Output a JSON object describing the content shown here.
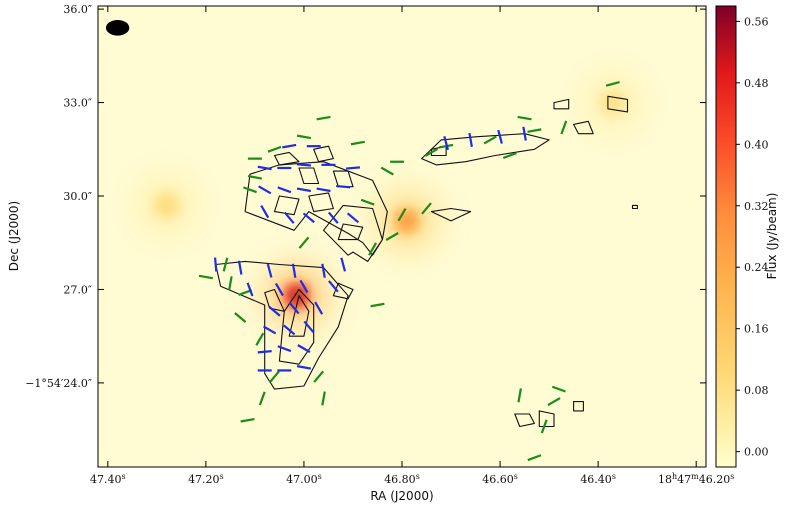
{
  "chart_data": {
    "type": "heatmap",
    "title": "",
    "xlabel": "RA (J2000)",
    "ylabel": "Dec (J2000)",
    "x_ticks": [
      {
        "value": 47.4,
        "label": "47.40s"
      },
      {
        "value": 47.2,
        "label": "47.20s"
      },
      {
        "value": 47.0,
        "label": "47.00s"
      },
      {
        "value": 46.8,
        "label": "46.80s"
      },
      {
        "value": 46.6,
        "label": "46.60s"
      },
      {
        "value": 46.4,
        "label": "46.40s"
      },
      {
        "value": 46.2,
        "label": "18h47m46.20s"
      }
    ],
    "y_ticks": [
      {
        "value": 24.0,
        "label": "−1°54′24.0″"
      },
      {
        "value": 27.0,
        "label": "27.0″"
      },
      {
        "value": 30.0,
        "label": "30.0″"
      },
      {
        "value": 33.0,
        "label": "33.0″"
      },
      {
        "value": 36.0,
        "label": "36.0″"
      }
    ],
    "xlim": [
      47.42,
      46.18
    ],
    "ylim": [
      36.1,
      21.3
    ],
    "colorbar": {
      "label": "Flux (Jy/beam)",
      "range": [
        -0.02,
        0.58
      ],
      "ticks": [
        "0.00",
        "0.08",
        "0.16",
        "0.24",
        "0.32",
        "0.40",
        "0.48",
        "0.56"
      ],
      "tick_values": [
        0.0,
        0.08,
        0.16,
        0.24,
        0.32,
        0.4,
        0.48,
        0.56
      ],
      "colormap": "YlOrRd"
    },
    "emission_peaks": [
      {
        "ra": 47.015,
        "dec": 26.8,
        "peak_flux": 0.55
      },
      {
        "ra": 46.79,
        "dec": 29.2,
        "peak_flux": 0.3
      },
      {
        "ra": 47.28,
        "dec": 29.7,
        "peak_flux": 0.1
      },
      {
        "ra": 46.37,
        "dec": 33.0,
        "peak_flux": 0.08
      }
    ],
    "contours": [
      {
        "ra": [
          47.08,
          47.06,
          47.0,
          46.97,
          46.93,
          46.91,
          46.96,
          47.05,
          47.12,
          47.18,
          47.17,
          47.08,
          47.08
        ],
        "dec": [
          24.3,
          23.8,
          23.9,
          24.8,
          25.8,
          26.8,
          27.7,
          27.8,
          27.9,
          27.8,
          27.1,
          26.5,
          24.3
        ]
      },
      {
        "ra": [
          47.05,
          47.01,
          46.98,
          46.98,
          47.01,
          47.04,
          47.05
        ],
        "dec": [
          24.7,
          24.6,
          25.3,
          26.5,
          27.0,
          26.3,
          24.7
        ]
      },
      {
        "ra": [
          47.03,
          47.0,
          46.99,
          47.01,
          47.03
        ],
        "dec": [
          25.5,
          25.5,
          26.3,
          26.8,
          25.5
        ]
      },
      {
        "ra": [
          47.04,
          47.07,
          47.08,
          47.06,
          47.04
        ],
        "dec": [
          26.3,
          26.4,
          26.9,
          27.0,
          26.3
        ]
      },
      {
        "ra": [
          46.94,
          46.91,
          46.9,
          46.93,
          46.94
        ],
        "dec": [
          26.8,
          26.7,
          27.0,
          27.2,
          26.8
        ]
      },
      {
        "ra": [
          46.9,
          46.87,
          46.84,
          46.83,
          46.86,
          46.96,
          47.05,
          47.11,
          47.12,
          47.02,
          46.99,
          46.91,
          46.88,
          46.86,
          46.84,
          46.86,
          46.92,
          46.96,
          46.91,
          46.9
        ],
        "dec": [
          28.2,
          27.9,
          28.6,
          29.5,
          30.5,
          31.1,
          31.0,
          30.7,
          29.5,
          28.9,
          29.5,
          28.8,
          28.5,
          28.1,
          28.6,
          29.6,
          29.7,
          28.9,
          28.1,
          28.2
        ]
      },
      {
        "ra": [
          46.93,
          46.89,
          46.88,
          46.92,
          46.93
        ],
        "dec": [
          28.6,
          28.6,
          29.0,
          29.1,
          28.6
        ]
      },
      {
        "ra": [
          46.98,
          46.94,
          46.95,
          46.99,
          46.98
        ],
        "dec": [
          29.5,
          29.6,
          30.1,
          30.0,
          29.5
        ]
      },
      {
        "ra": [
          47.06,
          47.02,
          47.01,
          47.05,
          47.06
        ],
        "dec": [
          29.5,
          29.4,
          29.9,
          30.0,
          29.5
        ]
      },
      {
        "ra": [
          47.0,
          46.97,
          46.98,
          47.01,
          47.0
        ],
        "dec": [
          30.4,
          30.4,
          30.9,
          30.9,
          30.4
        ]
      },
      {
        "ra": [
          46.93,
          46.9,
          46.91,
          46.94,
          46.93
        ],
        "dec": [
          30.3,
          30.3,
          30.8,
          30.8,
          30.3
        ]
      },
      {
        "ra": [
          47.05,
          47.01,
          47.03,
          47.06,
          47.05
        ],
        "dec": [
          31.0,
          31.1,
          31.4,
          31.3,
          31.0
        ]
      },
      {
        "ra": [
          46.97,
          46.94,
          46.95,
          46.98,
          46.97
        ],
        "dec": [
          31.1,
          31.2,
          31.6,
          31.5,
          31.1
        ]
      },
      {
        "ra": [
          46.74,
          46.7,
          46.66,
          46.7,
          46.74
        ],
        "dec": [
          29.5,
          29.6,
          29.5,
          29.2,
          29.5
        ]
      },
      {
        "ra": [
          46.76,
          46.72,
          46.65,
          46.55,
          46.5,
          46.53,
          46.61,
          46.67,
          46.73,
          46.76
        ],
        "dec": [
          31.2,
          31.8,
          31.9,
          32.0,
          31.8,
          31.5,
          31.3,
          31.1,
          31.0,
          31.2
        ]
      },
      {
        "ra": [
          46.74,
          46.71,
          46.71,
          46.74,
          46.74
        ],
        "dec": [
          31.3,
          31.3,
          31.6,
          31.5,
          31.3
        ]
      },
      {
        "ra": [
          46.44,
          46.41,
          46.42,
          46.45,
          46.44
        ],
        "dec": [
          32.0,
          32.0,
          32.4,
          32.3,
          32.0
        ]
      },
      {
        "ra": [
          46.38,
          46.34,
          46.34,
          46.38,
          46.38
        ],
        "dec": [
          32.8,
          32.7,
          33.1,
          33.2,
          32.8
        ]
      },
      {
        "ra": [
          46.49,
          46.46,
          46.46,
          46.49,
          46.49
        ],
        "dec": [
          32.8,
          32.8,
          33.1,
          33.0,
          32.8
        ]
      },
      {
        "ra": [
          46.56,
          46.53,
          46.54,
          46.57,
          46.56
        ],
        "dec": [
          22.6,
          22.7,
          23.0,
          23.0,
          22.6
        ]
      },
      {
        "ra": [
          46.52,
          46.49,
          46.49,
          46.52,
          46.52
        ],
        "dec": [
          22.6,
          22.6,
          23.0,
          23.1,
          22.6
        ]
      },
      {
        "ra": [
          46.45,
          46.43,
          46.43,
          46.45,
          46.45
        ],
        "dec": [
          23.1,
          23.1,
          23.4,
          23.4,
          23.1
        ]
      },
      {
        "ra": [
          46.33,
          46.32,
          46.32,
          46.33,
          46.33
        ],
        "dec": [
          29.6,
          29.6,
          29.7,
          29.7,
          29.6
        ]
      }
    ],
    "vectors_green": [
      [
        47.115,
        22.8,
        80
      ],
      [
        47.085,
        23.5,
        20
      ],
      [
        47.06,
        24.2,
        40
      ],
      [
        47.09,
        25.4,
        30
      ],
      [
        47.13,
        26.1,
        130
      ],
      [
        47.12,
        26.9,
        70
      ],
      [
        47.15,
        27.2,
        10
      ],
      [
        47.16,
        27.8,
        15
      ],
      [
        47.2,
        27.4,
        100
      ],
      [
        47.0,
        28.5,
        40
      ],
      [
        46.96,
        23.5,
        10
      ],
      [
        46.97,
        24.2,
        40
      ],
      [
        46.86,
        28.3,
        30
      ],
      [
        46.82,
        28.7,
        60
      ],
      [
        46.85,
        26.5,
        80
      ],
      [
        46.8,
        29.4,
        30
      ],
      [
        46.75,
        29.6,
        40
      ],
      [
        46.74,
        31.4,
        60
      ],
      [
        46.71,
        31.6,
        80
      ],
      [
        46.62,
        31.8,
        60
      ],
      [
        46.58,
        31.3,
        70
      ],
      [
        46.53,
        32.1,
        80
      ],
      [
        46.55,
        32.5,
        100
      ],
      [
        46.47,
        32.2,
        20
      ],
      [
        46.37,
        33.6,
        75
      ],
      [
        46.53,
        21.6,
        70
      ],
      [
        46.56,
        23.6,
        10
      ],
      [
        46.51,
        22.6,
        20
      ],
      [
        46.49,
        23.4,
        60
      ],
      [
        46.48,
        23.8,
        110
      ],
      [
        47.11,
        30.2,
        110
      ],
      [
        47.1,
        30.6,
        100
      ],
      [
        47.1,
        31.2,
        90
      ],
      [
        47.06,
        31.5,
        70
      ],
      [
        47.0,
        31.9,
        100
      ],
      [
        46.96,
        32.5,
        80
      ],
      [
        46.89,
        31.7,
        80
      ],
      [
        46.83,
        30.8,
        120
      ],
      [
        46.81,
        31.1,
        90
      ],
      [
        46.87,
        29.8,
        110
      ]
    ],
    "vectors_blue": [
      [
        47.08,
        24.4,
        90
      ],
      [
        47.04,
        24.4,
        90
      ],
      [
        47.0,
        24.5,
        100
      ],
      [
        47.08,
        25.0,
        85
      ],
      [
        47.04,
        25.1,
        110
      ],
      [
        47.0,
        25.1,
        120
      ],
      [
        47.07,
        25.7,
        120
      ],
      [
        47.03,
        25.7,
        130
      ],
      [
        46.99,
        25.8,
        140
      ],
      [
        47.06,
        26.3,
        130
      ],
      [
        47.02,
        26.4,
        140
      ],
      [
        46.97,
        26.4,
        150
      ],
      [
        47.11,
        27.0,
        160
      ],
      [
        47.05,
        27.0,
        150
      ],
      [
        47.0,
        27.1,
        150
      ],
      [
        46.94,
        27.1,
        140
      ],
      [
        47.18,
        27.8,
        175
      ],
      [
        47.13,
        27.7,
        170
      ],
      [
        47.07,
        27.6,
        165
      ],
      [
        47.02,
        27.6,
        170
      ],
      [
        46.96,
        27.6,
        170
      ],
      [
        46.92,
        27.8,
        165
      ],
      [
        47.08,
        29.5,
        150
      ],
      [
        47.03,
        29.3,
        140
      ],
      [
        46.99,
        29.3,
        130
      ],
      [
        46.94,
        29.3,
        140
      ],
      [
        46.9,
        29.3,
        130
      ],
      [
        47.08,
        30.2,
        120
      ],
      [
        47.04,
        30.2,
        110
      ],
      [
        47.0,
        30.2,
        100
      ],
      [
        46.96,
        30.2,
        100
      ],
      [
        46.92,
        30.3,
        95
      ],
      [
        47.08,
        30.9,
        100
      ],
      [
        47.04,
        30.9,
        90
      ],
      [
        47.0,
        31.0,
        95
      ],
      [
        46.95,
        31.0,
        90
      ],
      [
        46.9,
        30.9,
        85
      ],
      [
        47.03,
        31.6,
        80
      ],
      [
        46.98,
        31.6,
        90
      ],
      [
        46.71,
        31.7,
        165
      ],
      [
        46.66,
        31.8,
        170
      ],
      [
        46.6,
        31.9,
        165
      ],
      [
        46.55,
        32.0,
        170
      ]
    ],
    "beam": {
      "ra": 47.38,
      "dec": 35.4,
      "major_arcsec": 0.75,
      "minor_arcsec": 0.5,
      "angle_deg": 0
    }
  },
  "colors": {
    "background_low": "#fffbd3",
    "peak": "#8b0026",
    "contour": "#111111",
    "vector_green": "#1a8c1a",
    "vector_blue": "#1f2ee6",
    "beam": "#000000"
  }
}
